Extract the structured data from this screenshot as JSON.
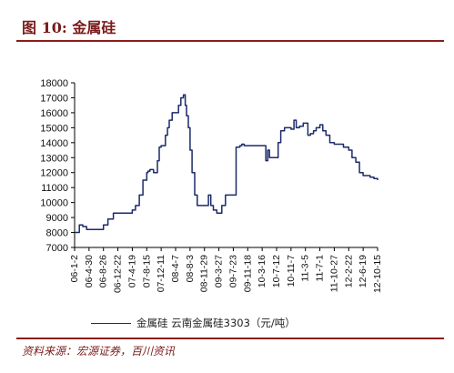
{
  "header": {
    "title": "图 10:  金属硅"
  },
  "footer": {
    "source": "资料来源：宏源证券，百川资讯"
  },
  "legend": {
    "label": "金属硅  云南金属硅3303（元/吨）"
  },
  "colors": {
    "series": "#1b2a6b",
    "accent": "#8b1c1c"
  },
  "chart_data": {
    "type": "line",
    "title": "",
    "xlabel": "",
    "ylabel": "",
    "ylim": [
      7000,
      18000
    ],
    "y_ticks": [
      7000,
      8000,
      9000,
      10000,
      11000,
      12000,
      13000,
      14000,
      15000,
      16000,
      17000,
      18000
    ],
    "x_tick_labels": [
      "06-1-2",
      "06-4-30",
      "06-8-26",
      "06-12-22",
      "07-4-19",
      "07-8-15",
      "07-12-11",
      "08-4-7",
      "08-8-3",
      "08-11-29",
      "09-3-27",
      "09-7-23",
      "09-11-18",
      "10-3-16",
      "10-7-12",
      "10-11-7",
      "11-3-5",
      "11-7-1",
      "11-10-27",
      "12-2-22",
      "12-6-19",
      "12-10-15"
    ],
    "grid": false,
    "legend_position": "bottom",
    "series": [
      {
        "name": "金属硅  云南金属硅3303（元/吨）",
        "x": [
          "06-1-2",
          "06-2-10",
          "06-3-10",
          "06-4-10",
          "06-4-30",
          "06-6-15",
          "06-8-26",
          "06-10-1",
          "06-11-15",
          "06-12-22",
          "07-1-30",
          "07-3-1",
          "07-3-15",
          "07-4-19",
          "07-5-15",
          "07-6-15",
          "07-7-15",
          "07-8-15",
          "07-8-25",
          "07-9-10",
          "07-10-10",
          "07-11-10",
          "07-11-25",
          "07-12-11",
          "08-1-15",
          "08-2-1",
          "08-2-15",
          "08-3-10",
          "08-4-7",
          "08-5-1",
          "08-5-20",
          "08-6-10",
          "08-6-25",
          "08-7-5",
          "08-7-20",
          "08-8-3",
          "08-8-20",
          "08-9-10",
          "08-10-1",
          "08-10-20",
          "08-11-10",
          "08-11-29",
          "09-1-1",
          "09-1-20",
          "09-2-10",
          "09-3-10",
          "09-3-27",
          "09-4-20",
          "09-5-20",
          "09-6-20",
          "09-7-23",
          "09-8-15",
          "09-9-15",
          "09-10-1",
          "09-10-20",
          "09-11-18",
          "09-12-15",
          "10-1-15",
          "10-3-16",
          "10-4-15",
          "10-5-1",
          "10-5-15",
          "10-6-15",
          "10-7-12",
          "10-7-25",
          "10-8-15",
          "10-9-15",
          "10-10-15",
          "10-11-7",
          "10-12-1",
          "10-12-20",
          "11-1-15",
          "11-2-15",
          "11-3-5",
          "11-3-25",
          "11-4-15",
          "11-5-10",
          "11-6-1",
          "11-7-1",
          "11-7-25",
          "11-8-20",
          "11-9-20",
          "11-10-27",
          "11-12-1",
          "12-1-10",
          "12-2-22",
          "12-3-20",
          "12-4-20",
          "12-5-20",
          "12-6-19",
          "12-7-15",
          "12-8-15",
          "12-9-15",
          "12-10-15"
        ],
        "values": [
          8000,
          8500,
          8400,
          8200,
          8200,
          8200,
          8500,
          8900,
          9300,
          9300,
          9300,
          9300,
          9300,
          9500,
          9800,
          10500,
          11500,
          12000,
          12100,
          12200,
          12000,
          12800,
          13700,
          13800,
          14500,
          15000,
          15500,
          16000,
          16000,
          16500,
          17000,
          17200,
          16500,
          15800,
          15000,
          13500,
          12000,
          10500,
          9800,
          9800,
          9800,
          9800,
          10500,
          9800,
          9500,
          9300,
          9300,
          9800,
          10500,
          10500,
          10500,
          13700,
          13800,
          13900,
          13800,
          13800,
          13800,
          13800,
          13800,
          12800,
          13500,
          13000,
          13000,
          13000,
          14000,
          14800,
          15000,
          15000,
          14900,
          15500,
          15000,
          15100,
          15300,
          15300,
          14500,
          14600,
          14800,
          15000,
          15200,
          14800,
          14500,
          14000,
          13900,
          13900,
          13700,
          13500,
          13000,
          12700,
          12000,
          11800,
          11800,
          11700,
          11600,
          11500
        ]
      }
    ]
  }
}
